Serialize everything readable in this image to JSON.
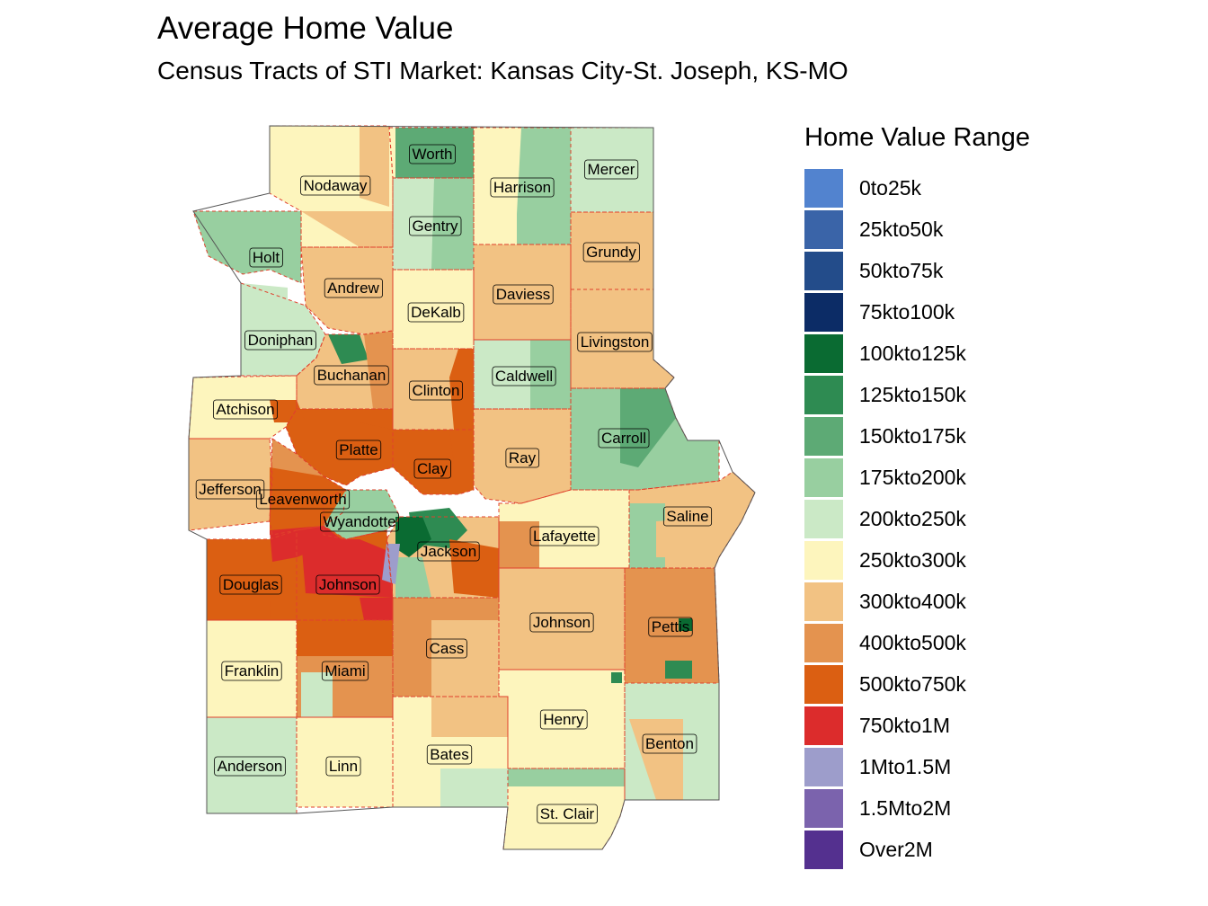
{
  "title": "Average Home Value",
  "subtitle": "Census Tracts of STI Market: Kansas City-St. Joseph, KS-MO",
  "legend": {
    "title": "Home Value Range",
    "items": [
      {
        "label": "0to25k",
        "color": "#5283cf"
      },
      {
        "label": "25kto50k",
        "color": "#3a64a8"
      },
      {
        "label": "50kto75k",
        "color": "#234c8a"
      },
      {
        "label": "75kto100k",
        "color": "#0c2c66"
      },
      {
        "label": "100kto125k",
        "color": "#0a6b32"
      },
      {
        "label": "125kto150k",
        "color": "#2e8b52"
      },
      {
        "label": "150kto175k",
        "color": "#5daa75"
      },
      {
        "label": "175kto200k",
        "color": "#98cfa0"
      },
      {
        "label": "200kto250k",
        "color": "#cbe9c6"
      },
      {
        "label": "250kto300k",
        "color": "#fdf5bd"
      },
      {
        "label": "300kto400k",
        "color": "#f2c283"
      },
      {
        "label": "400kto500k",
        "color": "#e4934f"
      },
      {
        "label": "500kto750k",
        "color": "#db5f12"
      },
      {
        "label": "750kto1M",
        "color": "#dc2c2c"
      },
      {
        "label": "1Mto1.5M",
        "color": "#9d9dcb"
      },
      {
        "label": "1.5Mto2M",
        "color": "#7b63ad"
      },
      {
        "label": "Over2M",
        "color": "#54308f"
      }
    ]
  },
  "counties": [
    {
      "name": "Worth",
      "range": "150kto175k"
    },
    {
      "name": "Harrison",
      "range": "250kto300k"
    },
    {
      "name": "Mercer",
      "range": "200kto250k"
    },
    {
      "name": "Nodaway",
      "range": "250kto300k"
    },
    {
      "name": "Gentry",
      "range": "200kto250k"
    },
    {
      "name": "Holt",
      "range": "175kto200k"
    },
    {
      "name": "Grundy",
      "range": "300kto400k"
    },
    {
      "name": "Andrew",
      "range": "300kto400k"
    },
    {
      "name": "Daviess",
      "range": "300kto400k"
    },
    {
      "name": "DeKalb",
      "range": "250kto300k"
    },
    {
      "name": "Doniphan",
      "range": "200kto250k"
    },
    {
      "name": "Livingston",
      "range": "300kto400k"
    },
    {
      "name": "Buchanan",
      "range": "300kto400k"
    },
    {
      "name": "Clinton",
      "range": "300kto400k"
    },
    {
      "name": "Caldwell",
      "range": "200kto250k"
    },
    {
      "name": "Atchison",
      "range": "250kto300k"
    },
    {
      "name": "Carroll",
      "range": "175kto200k"
    },
    {
      "name": "Platte",
      "range": "500kto750k"
    },
    {
      "name": "Ray",
      "range": "300kto400k"
    },
    {
      "name": "Clay",
      "range": "500kto750k"
    },
    {
      "name": "Jefferson",
      "range": "300kto400k"
    },
    {
      "name": "Leavenworth",
      "range": "400kto500k"
    },
    {
      "name": "Wyandotte",
      "range": "175kto200k"
    },
    {
      "name": "Saline",
      "range": "300kto400k"
    },
    {
      "name": "Lafayette",
      "range": "250kto300k"
    },
    {
      "name": "Jackson",
      "range": "300kto400k"
    },
    {
      "name": "Douglas",
      "range": "500kto750k"
    },
    {
      "name": "Johnson",
      "range": "500kto750k"
    },
    {
      "name": "Johnson",
      "range": "300kto400k"
    },
    {
      "name": "Pettis",
      "range": "400kto500k"
    },
    {
      "name": "Cass",
      "range": "400kto500k"
    },
    {
      "name": "Franklin",
      "range": "250kto300k"
    },
    {
      "name": "Miami",
      "range": "400kto500k"
    },
    {
      "name": "Henry",
      "range": "250kto300k"
    },
    {
      "name": "Benton",
      "range": "200kto250k"
    },
    {
      "name": "Anderson",
      "range": "200kto250k"
    },
    {
      "name": "Linn",
      "range": "250kto300k"
    },
    {
      "name": "Bates",
      "range": "250kto300k"
    },
    {
      "name": "St. Clair",
      "range": "250kto300k"
    }
  ]
}
